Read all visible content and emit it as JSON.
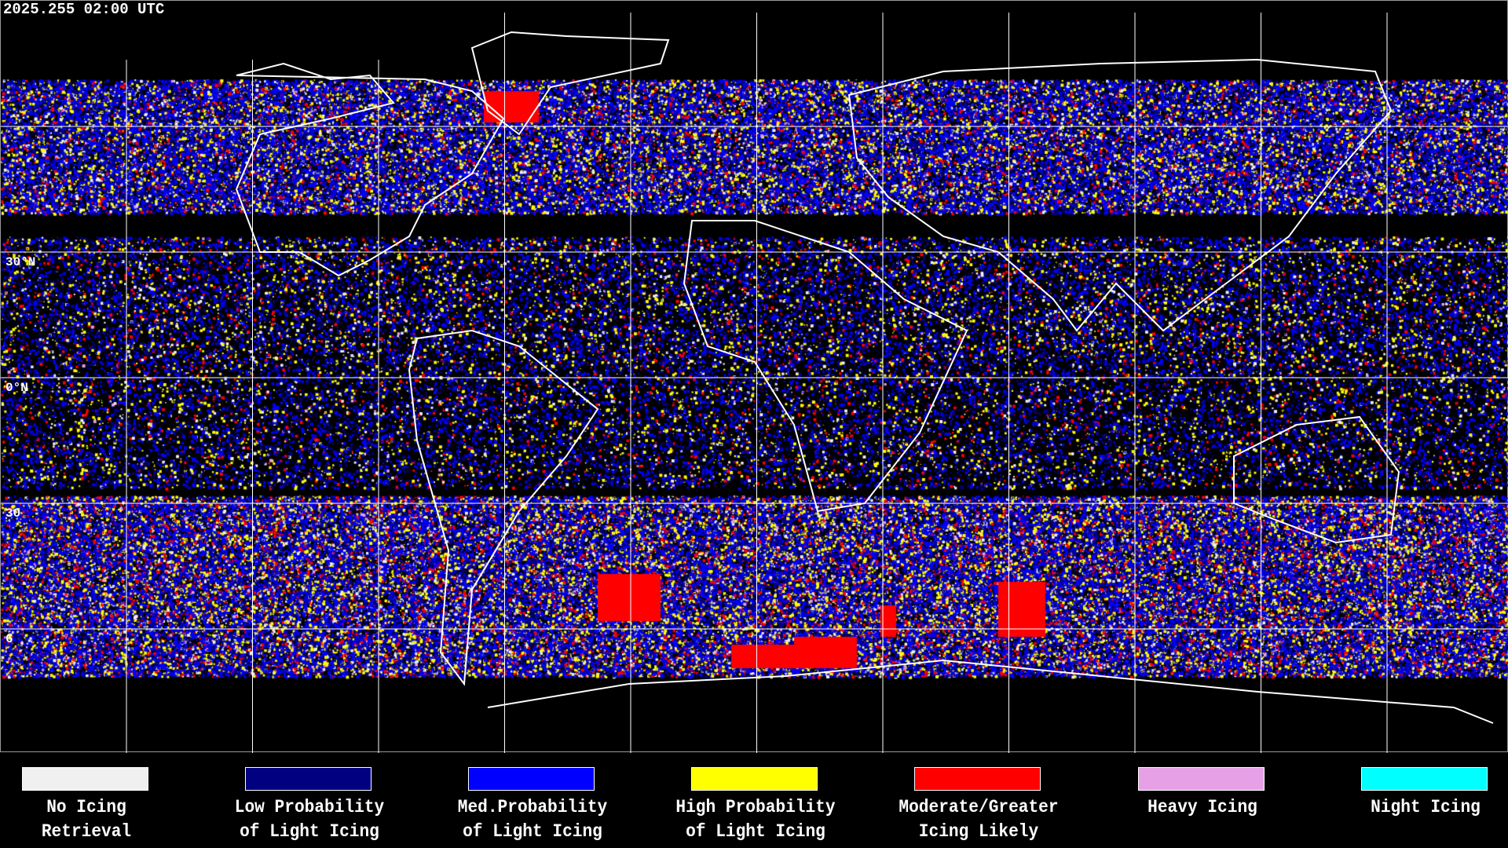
{
  "title": "2025.255 02:00 UTC",
  "lat_labels": [
    "30°N",
    "0°N",
    "30",
    "6"
  ],
  "legend": [
    {
      "line1": "No Icing",
      "line2": "Retrieval",
      "color": "#f0f0f0"
    },
    {
      "line1": "Low Probability",
      "line2": "of Light Icing",
      "color": "#000080"
    },
    {
      "line1": "Med.Probability",
      "line2": "of Light Icing",
      "color": "#0000ff"
    },
    {
      "line1": "High Probability",
      "line2": "of Light Icing",
      "color": "#ffff00"
    },
    {
      "line1": "Moderate/Greater",
      "line2": "Icing Likely",
      "color": "#ff0000"
    },
    {
      "line1": "Heavy Icing",
      "line2": "",
      "color": "#e6a0e6"
    },
    {
      "line1": "Night Icing",
      "line2": "",
      "color": "#00ffff"
    }
  ]
}
